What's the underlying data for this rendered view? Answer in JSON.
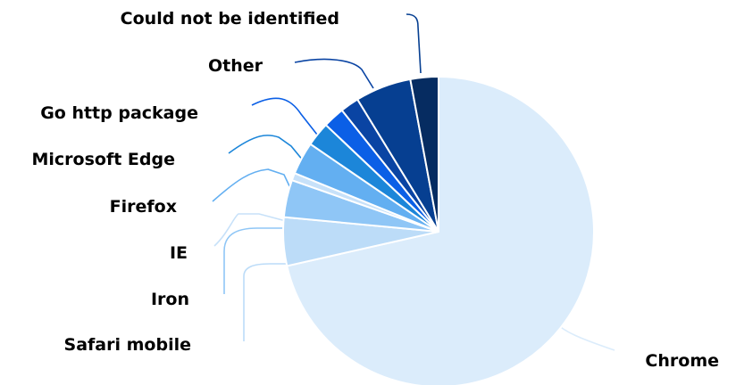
{
  "chart_data": {
    "type": "pie",
    "title": "",
    "start_angle_deg": 0,
    "direction": "clockwise",
    "slices": [
      {
        "label": "Chrome",
        "value": 73.6,
        "color": "#dbecfb"
      },
      {
        "label": "Safari mobile",
        "value": 5.2,
        "color": "#bcdcf8"
      },
      {
        "label": "Iron",
        "value": 4.0,
        "color": "#8fc6f6"
      },
      {
        "label": "IE",
        "value": 0.8,
        "color": "#c7e1f9"
      },
      {
        "label": "Firefox",
        "value": 3.5,
        "color": "#63aff1"
      },
      {
        "label": "Microsoft Edge",
        "value": 2.6,
        "color": "#1c86d9"
      },
      {
        "label": "Go http package",
        "value": 2.3,
        "color": "#0b5fe6"
      },
      {
        "label": "Other",
        "value": 2.0,
        "color": "#0a44a3"
      },
      {
        "label": "Could not be identified",
        "value": 6.0,
        "color": "#063f91"
      },
      {
        "label": "",
        "value": 3.0,
        "color": "#062c61"
      }
    ]
  }
}
